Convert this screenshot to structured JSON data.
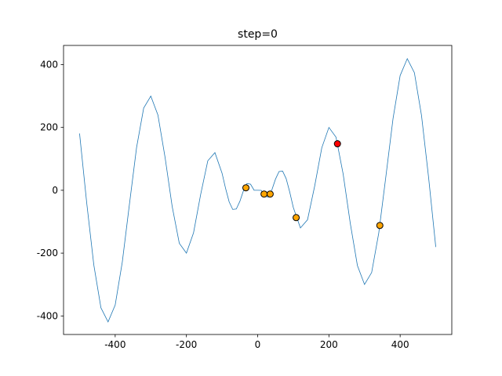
{
  "chart_data": {
    "type": "line",
    "title": "step=0",
    "x": [
      -500,
      -480,
      -460,
      -440,
      -420,
      -400,
      -380,
      -360,
      -340,
      -320,
      -300,
      -280,
      -260,
      -240,
      -220,
      -200,
      -180,
      -160,
      -140,
      -120,
      -100,
      -90,
      -80,
      -70,
      -60,
      -50,
      -40,
      -30,
      -20,
      -10,
      0,
      10,
      20,
      30,
      40,
      50,
      60,
      70,
      80,
      90,
      100,
      120,
      140,
      160,
      180,
      200,
      220,
      240,
      260,
      280,
      300,
      320,
      340,
      360,
      380,
      400,
      420,
      440,
      460,
      480,
      500
    ],
    "values": [
      180.6,
      -39.5,
      -237.6,
      -374.1,
      -418.9,
      -365.2,
      -228.1,
      -44.6,
      135.7,
      261.8,
      299.7,
      239.6,
      105.1,
      -51.6,
      -168.8,
      -200,
      -135.2,
      -13.2,
      93.8,
      119.9,
      54.4,
      5.6,
      -37,
      -61,
      -59.6,
      -35.4,
      -1.66,
      21.6,
      19.43,
      0.21,
      0,
      -0.21,
      -19.43,
      -21.6,
      1.66,
      35.4,
      59.6,
      61,
      37,
      -5.6,
      -54.4,
      -119.9,
      -93.8,
      13.2,
      135.2,
      200,
      168.8,
      51.6,
      -105.1,
      -239.6,
      -299.7,
      -261.8,
      -135.7,
      44.6,
      228.1,
      365.2,
      418.9,
      374.1,
      237.6,
      39.5,
      -180.6
    ],
    "color": "#1f77b4",
    "markers": {
      "x": [
        -33,
        18,
        35,
        108,
        343,
        224
      ],
      "values": [
        8,
        -12,
        -12,
        -87,
        -112,
        148
      ],
      "colors": [
        "#ffa500",
        "#ffa500",
        "#ffa500",
        "#ffa500",
        "#ffa500",
        "#ff0000"
      ],
      "edgecolor": "#000000"
    },
    "xlim": [
      -545,
      545
    ],
    "ylim": [
      -459,
      461
    ],
    "xticks": [
      -400,
      -200,
      0,
      200,
      400
    ],
    "yticks": [
      -400,
      -200,
      0,
      200,
      400
    ]
  }
}
